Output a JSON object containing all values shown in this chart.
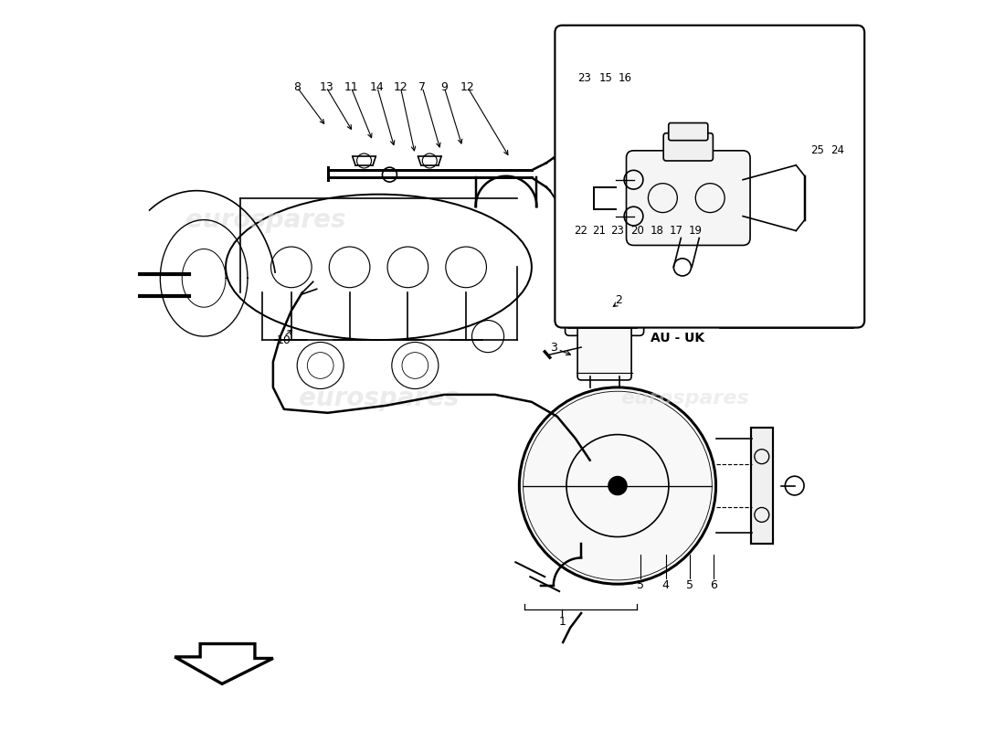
{
  "title": "",
  "background_color": "#ffffff",
  "line_color": "#000000",
  "light_gray": "#cccccc",
  "watermark_color": "#d8d8d8",
  "watermark_text": "eurospares",
  "fig_width": 11.0,
  "fig_height": 8.0
}
